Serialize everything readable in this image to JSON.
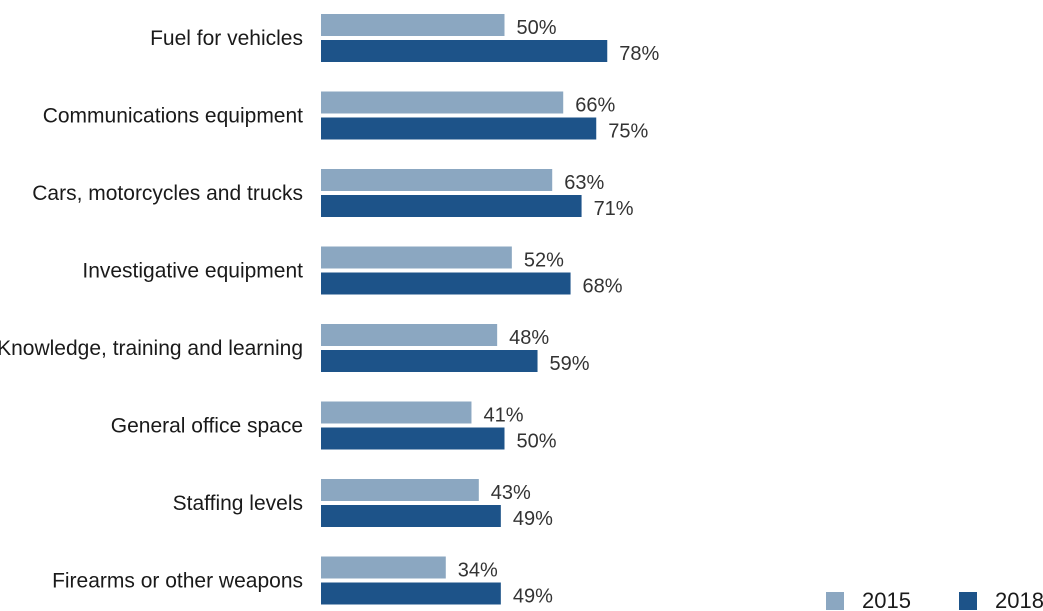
{
  "chart_data": {
    "type": "bar",
    "orientation": "horizontal",
    "categories": [
      "Fuel for vehicles",
      "Communications equipment",
      "Cars, motorcycles and trucks",
      "Investigative equipment",
      "Knowledge, training and learning",
      "General office space",
      "Staffing levels",
      "Firearms or other weapons"
    ],
    "series": [
      {
        "name": "2015",
        "color": "#8BA7C1",
        "values": [
          50,
          66,
          63,
          52,
          48,
          41,
          43,
          34
        ]
      },
      {
        "name": "2018",
        "color": "#1D5389",
        "values": [
          78,
          75,
          71,
          68,
          59,
          50,
          49,
          49
        ]
      }
    ],
    "value_suffix": "%",
    "xlim": [
      0,
      100
    ],
    "grid": false,
    "legend_position": "bottom-right"
  }
}
